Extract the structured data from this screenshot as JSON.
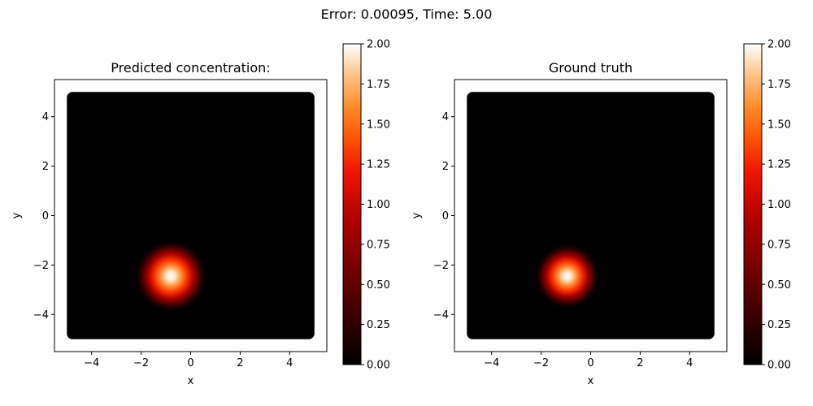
{
  "figure": {
    "suptitle": "Error: 0.00095, Time: 5.00"
  },
  "colors": {
    "colormap": "gist_heat",
    "background": "#ffffff",
    "axes": "#000000"
  },
  "chart_data": [
    {
      "type": "heatmap",
      "title": "Predicted concentration:",
      "xlabel": "x",
      "ylabel": "y",
      "xlim": [
        -5.5,
        5.5
      ],
      "ylim": [
        -5.5,
        5.5
      ],
      "xticks": [
        -4,
        -2,
        0,
        2,
        4
      ],
      "yticks": [
        -4,
        -2,
        0,
        2,
        4
      ],
      "data_extent": [
        -5,
        5,
        -5,
        5
      ],
      "grid": false,
      "peak": {
        "x": -0.8,
        "y": -2.45,
        "value": 2.0,
        "sigma": 0.5
      },
      "colorbar": {
        "range": [
          0,
          2
        ],
        "ticks": [
          0,
          0.25,
          0.5,
          0.75,
          1,
          1.25,
          1.5,
          1.75,
          2
        ],
        "tick_labels": [
          "0.00",
          "0.25",
          "0.50",
          "0.75",
          "1.00",
          "1.25",
          "1.50",
          "1.75",
          "2.00"
        ]
      }
    },
    {
      "type": "heatmap",
      "title": "Ground truth",
      "xlabel": "x",
      "ylabel": "y",
      "xlim": [
        -5.5,
        5.5
      ],
      "ylim": [
        -5.5,
        5.5
      ],
      "xticks": [
        -4,
        -2,
        0,
        2,
        4
      ],
      "yticks": [
        -4,
        -2,
        0,
        2,
        4
      ],
      "data_extent": [
        -5,
        5,
        -5,
        5
      ],
      "grid": false,
      "peak": {
        "x": -0.95,
        "y": -2.45,
        "value": 2.0,
        "sigma": 0.45
      },
      "colorbar": {
        "range": [
          0,
          2
        ],
        "ticks": [
          0,
          0.25,
          0.5,
          0.75,
          1,
          1.25,
          1.5,
          1.75,
          2
        ],
        "tick_labels": [
          "0.00",
          "0.25",
          "0.50",
          "0.75",
          "1.00",
          "1.25",
          "1.50",
          "1.75",
          "2.00"
        ]
      }
    }
  ]
}
